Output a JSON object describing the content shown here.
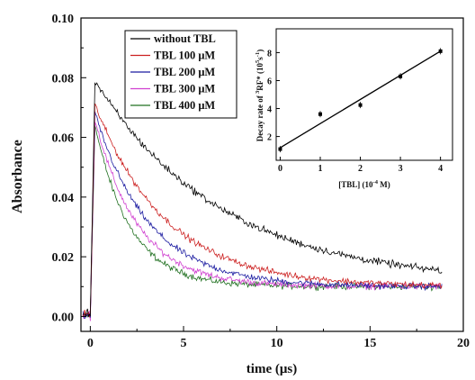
{
  "chart_data": [
    {
      "type": "line",
      "xlabel": "time (μs)",
      "ylabel": "Absorbance",
      "xlim": [
        -0.5,
        20
      ],
      "ylim": [
        -0.005,
        0.1
      ],
      "xticks": [
        "0",
        "5",
        "10",
        "15",
        "20"
      ],
      "yticks": [
        "0.00",
        "0.02",
        "0.04",
        "0.06",
        "0.08",
        "0.10"
      ],
      "grid": false,
      "legend_position": "top-center",
      "series": [
        {
          "name": "without TBL",
          "color": "#000000",
          "peak": 0.079,
          "decay_tau_us": 6.8,
          "baseline": 0.011
        },
        {
          "name": "TBL 100 μM",
          "color": "#cc2020",
          "peak": 0.071,
          "decay_tau_us": 3.8,
          "baseline": 0.01
        },
        {
          "name": "TBL 200 μM",
          "color": "#1a1aa0",
          "peak": 0.068,
          "decay_tau_us": 2.9,
          "baseline": 0.01
        },
        {
          "name": "TBL 300 μM",
          "color": "#d040d0",
          "peak": 0.066,
          "decay_tau_us": 2.3,
          "baseline": 0.01
        },
        {
          "name": "TBL 400 μM",
          "color": "#207020",
          "peak": 0.064,
          "decay_tau_us": 1.9,
          "baseline": 0.01
        }
      ]
    },
    {
      "type": "scatter",
      "xlabel": "[TBL] (10",
      "xlabel_exp": "-4",
      "xlabel_tail": " M)",
      "ylabel_parts": [
        "Decay rate of ",
        "3",
        "RF* (10",
        "5",
        "s",
        "-1",
        ")"
      ],
      "xlim": [
        -0.1,
        4.3
      ],
      "ylim": [
        0.3,
        9.7
      ],
      "xticks": [
        "0",
        "1",
        "2",
        "3",
        "4"
      ],
      "yticks": [
        "2",
        "4",
        "6",
        "8"
      ],
      "x": [
        0,
        1,
        2,
        3,
        4
      ],
      "y": [
        1.1,
        3.6,
        4.25,
        6.3,
        8.1
      ],
      "fit_line": {
        "x": [
          0,
          4
        ],
        "y": [
          1.2,
          8.1
        ]
      }
    }
  ]
}
